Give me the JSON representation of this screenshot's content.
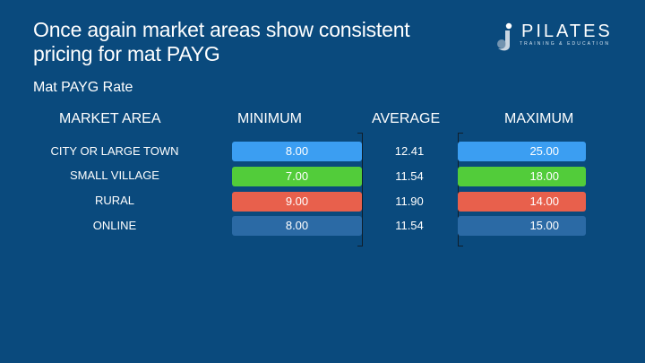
{
  "slide": {
    "title": "Once again market areas show consistent pricing for mat PAYG",
    "subtitle": "Mat PAYG Rate"
  },
  "logo": {
    "brand": "PILATES",
    "tagline": "TRAINING & EDUCATION"
  },
  "table": {
    "headers": {
      "area": "MARKET AREA",
      "minimum": "MINIMUM",
      "average": "AVERAGE",
      "maximum": "MAXIMUM"
    },
    "rows": [
      {
        "area": "CITY OR LARGE TOWN",
        "minimum": "8.00",
        "average": "12.41",
        "maximum": "25.00",
        "color": "#3b9ef2"
      },
      {
        "area": "SMALL VILLAGE",
        "minimum": "7.00",
        "average": "11.54",
        "maximum": "18.00",
        "color": "#52cc3a"
      },
      {
        "area": "RURAL",
        "minimum": "9.00",
        "average": "11.90",
        "maximum": "14.00",
        "color": "#e8604c"
      },
      {
        "area": "ONLINE",
        "minimum": "8.00",
        "average": "11.54",
        "maximum": "15.00",
        "color": "#2b6aa5"
      }
    ]
  },
  "colors": {
    "background": "#0a4a7d",
    "text": "#ffffff"
  }
}
